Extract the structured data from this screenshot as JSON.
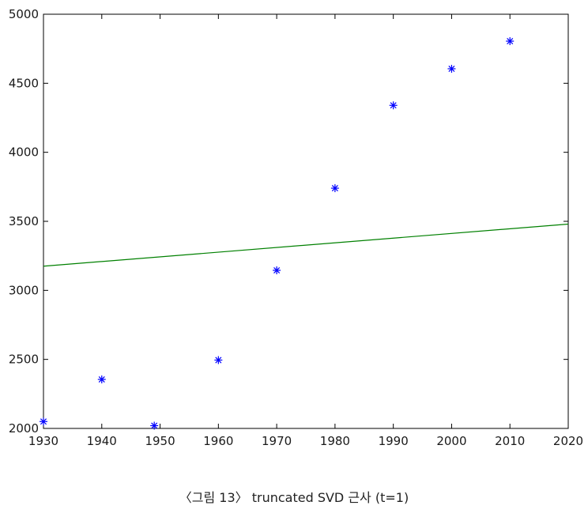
{
  "caption": "〈그림 13〉 truncated SVD 근사 (t=1)",
  "chart_data": {
    "type": "scatter",
    "title": "",
    "xlabel": "",
    "ylabel": "",
    "xlim": [
      1930,
      2020
    ],
    "ylim": [
      2000,
      5000
    ],
    "xticks": [
      1930,
      1940,
      1950,
      1960,
      1970,
      1980,
      1990,
      2000,
      2010,
      2020
    ],
    "yticks": [
      2000,
      2500,
      3000,
      3500,
      4000,
      4500,
      5000
    ],
    "grid": false,
    "series": [
      {
        "kind": "scatter",
        "marker": "asterisk",
        "color": "#0000ff",
        "points": [
          {
            "x": 1930,
            "y": 2050
          },
          {
            "x": 1940,
            "y": 2355
          },
          {
            "x": 1949,
            "y": 2020
          },
          {
            "x": 1960,
            "y": 2495
          },
          {
            "x": 1970,
            "y": 3145
          },
          {
            "x": 1980,
            "y": 3740
          },
          {
            "x": 1990,
            "y": 4340
          },
          {
            "x": 2000,
            "y": 4605
          },
          {
            "x": 2010,
            "y": 4805
          }
        ]
      },
      {
        "kind": "line",
        "color": "#008000",
        "points": [
          {
            "x": 1930,
            "y": 3175
          },
          {
            "x": 2020,
            "y": 3480
          }
        ]
      }
    ]
  }
}
